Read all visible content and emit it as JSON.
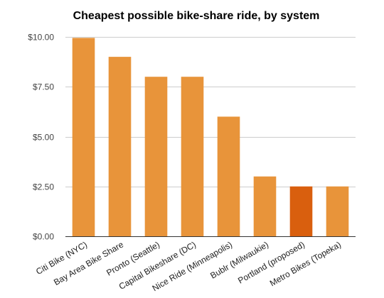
{
  "chart_data": {
    "type": "bar",
    "title": "Cheapest possible bike-share ride, by system",
    "xlabel": "",
    "ylabel": "",
    "categories": [
      "Citi Bike (NYC)",
      "Bay Area Bike Share",
      "Pronto (Seattle)",
      "Capital Bikeshare (DC)",
      "Nice Ride (Minneapolis)",
      "Bublr (Milwaukie)",
      "Portland (proposed)",
      "Metro Bikes (Topeka)"
    ],
    "values": [
      9.95,
      9.0,
      8.0,
      8.0,
      6.0,
      3.0,
      2.5,
      2.5
    ],
    "highlight_index": 6,
    "ylim": [
      0,
      10
    ],
    "yticks": [
      0,
      2.5,
      5,
      7.5,
      10
    ],
    "ytick_labels": [
      "$0.00",
      "$2.50",
      "$5.00",
      "$7.50",
      "$10.00"
    ],
    "grid": true,
    "legend": "none",
    "colors": {
      "bar": "#E8943A",
      "highlight": "#D95F0E",
      "grid": "#cccccc",
      "axis": "#333333"
    }
  }
}
